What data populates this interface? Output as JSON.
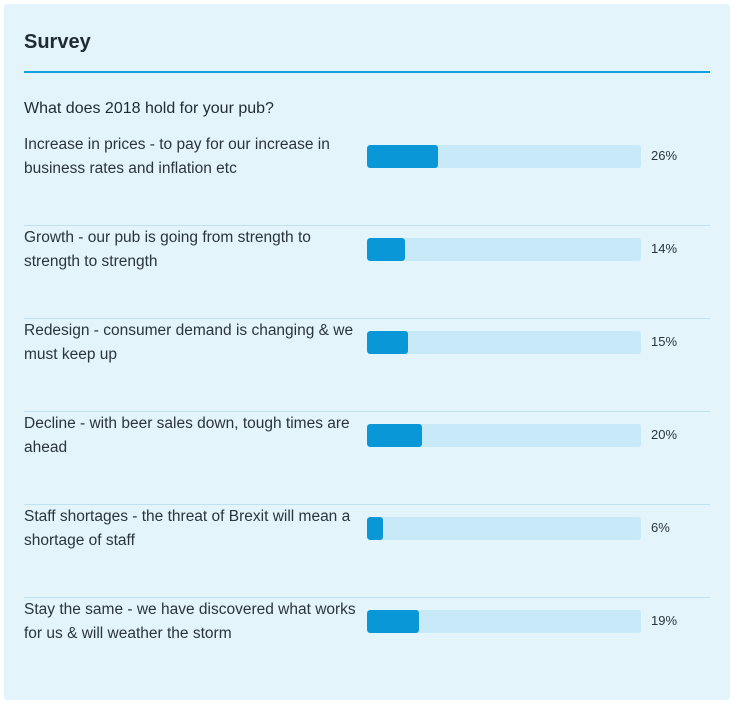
{
  "survey": {
    "title": "Survey",
    "question": "What does 2018 hold for your pub?",
    "colors": {
      "background": "#e3f4fb",
      "accent": "#12a0dc",
      "bar_fill": "#0a97d8",
      "bar_track": "#c7e9f8",
      "divider": "#bfe2f0"
    },
    "options": [
      {
        "label": "Increase in prices - to pay for our increase in business rates and inflation etc",
        "percent": 26,
        "percent_text": "26%"
      },
      {
        "label": "Growth - our pub is going from strength to strength to strength",
        "percent": 14,
        "percent_text": "14%"
      },
      {
        "label": "Redesign - consumer demand is changing & we must keep up",
        "percent": 15,
        "percent_text": "15%"
      },
      {
        "label": "Decline - with beer sales down, tough times are ahead",
        "percent": 20,
        "percent_text": "20%"
      },
      {
        "label": "Staff shortages - the threat of Brexit will mean a shortage of staff",
        "percent": 6,
        "percent_text": "6%"
      },
      {
        "label": "Stay the same - we have discovered what works for us & will weather the storm",
        "percent": 19,
        "percent_text": "19%"
      }
    ]
  }
}
